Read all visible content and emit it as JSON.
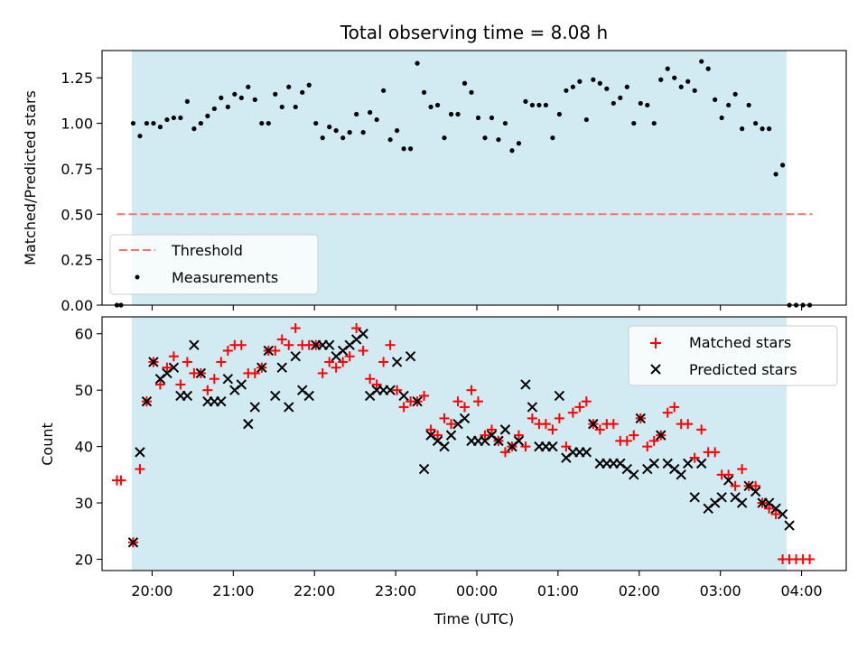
{
  "chart_data": [
    {
      "type": "scatter",
      "title": "Total observing time = 8.08 h",
      "xlabel": "",
      "ylabel": "Matched/Predicted stars",
      "xlim": [
        "19:23",
        "04:33"
      ],
      "ylim": [
        0,
        1.4
      ],
      "grid": false,
      "yticks": [
        "0.00",
        "0.25",
        "0.50",
        "0.75",
        "1.00",
        "1.25"
      ],
      "shaded_region": {
        "from": "19:45",
        "to": "03:49",
        "color": "#add8e6"
      },
      "threshold": {
        "name": "Threshold",
        "value": 0.5,
        "from": "19:34",
        "to": "04:08",
        "color": "#ff7070"
      },
      "legend_position": "lower-left",
      "legend": [
        "Threshold",
        "Measurements"
      ],
      "series": [
        {
          "name": "Measurements",
          "color": "#000000",
          "x": [
            "19:34",
            "19:37",
            "19:46",
            "19:51",
            "19:56",
            "20:01",
            "20:06",
            "20:11",
            "20:16",
            "20:21",
            "20:26",
            "20:31",
            "20:36",
            "20:41",
            "20:46",
            "20:51",
            "20:56",
            "21:01",
            "21:06",
            "21:11",
            "21:16",
            "21:21",
            "21:26",
            "21:31",
            "21:36",
            "21:41",
            "21:46",
            "21:51",
            "21:56",
            "22:01",
            "22:06",
            "22:11",
            "22:16",
            "22:21",
            "22:26",
            "22:31",
            "22:36",
            "22:41",
            "22:46",
            "22:51",
            "22:56",
            "23:01",
            "23:06",
            "23:11",
            "23:16",
            "23:21",
            "23:26",
            "23:31",
            "23:36",
            "23:41",
            "23:46",
            "23:51",
            "23:56",
            "00:01",
            "00:06",
            "00:11",
            "00:16",
            "00:21",
            "00:26",
            "00:31",
            "00:36",
            "00:41",
            "00:46",
            "00:51",
            "00:56",
            "01:01",
            "01:06",
            "01:11",
            "01:16",
            "01:21",
            "01:26",
            "01:31",
            "01:36",
            "01:41",
            "01:46",
            "01:51",
            "01:56",
            "02:01",
            "02:06",
            "02:11",
            "02:16",
            "02:21",
            "02:26",
            "02:31",
            "02:36",
            "02:41",
            "02:46",
            "02:51",
            "02:56",
            "03:01",
            "03:06",
            "03:11",
            "03:16",
            "03:21",
            "03:26",
            "03:31",
            "03:36",
            "03:41",
            "03:46",
            "03:51",
            "03:56",
            "04:01",
            "04:06"
          ],
          "y": [
            0.0,
            0.0,
            1.0,
            0.93,
            1.0,
            1.0,
            0.98,
            1.02,
            1.03,
            1.03,
            1.12,
            0.97,
            1.0,
            1.04,
            1.08,
            1.14,
            1.09,
            1.16,
            1.14,
            1.2,
            1.13,
            1.0,
            1.0,
            1.16,
            1.09,
            1.2,
            1.09,
            1.17,
            1.21,
            1.0,
            0.92,
            0.98,
            0.96,
            0.92,
            0.95,
            1.05,
            0.95,
            1.06,
            1.02,
            1.18,
            0.91,
            0.96,
            0.86,
            0.86,
            1.33,
            1.17,
            1.09,
            1.1,
            0.92,
            1.05,
            1.05,
            1.22,
            1.17,
            1.03,
            0.92,
            1.03,
            0.91,
            1.0,
            0.85,
            0.89,
            1.12,
            1.1,
            1.1,
            1.1,
            0.92,
            1.05,
            1.18,
            1.2,
            1.23,
            1.02,
            1.24,
            1.22,
            1.19,
            1.11,
            1.14,
            1.2,
            1.0,
            1.11,
            1.1,
            1.0,
            1.24,
            1.3,
            1.25,
            1.2,
            1.23,
            1.18,
            1.34,
            1.3,
            1.13,
            1.03,
            1.1,
            1.16,
            0.97,
            1.1,
            1.0,
            0.97,
            0.97,
            0.72,
            0.77,
            0.0,
            0.0,
            0.0,
            0.0
          ]
        }
      ]
    },
    {
      "type": "scatter",
      "title": "",
      "xlabel": "Time (UTC)",
      "ylabel": "Count",
      "xlim": [
        "19:23",
        "04:33"
      ],
      "ylim": [
        18,
        63
      ],
      "grid": false,
      "yticks": [
        "20",
        "30",
        "40",
        "50",
        "60"
      ],
      "xticks": [
        "20:00",
        "21:00",
        "22:00",
        "23:00",
        "00:00",
        "01:00",
        "02:00",
        "03:00",
        "04:00"
      ],
      "shaded_region": {
        "from": "19:45",
        "to": "03:49",
        "color": "#add8e6"
      },
      "legend_position": "upper-right",
      "legend": [
        "Matched stars",
        "Predicted stars"
      ],
      "series": [
        {
          "name": "Matched stars",
          "marker": "+",
          "color": "#ff0000",
          "x": [
            "19:34",
            "19:37",
            "19:46",
            "19:51",
            "19:56",
            "20:01",
            "20:06",
            "20:11",
            "20:16",
            "20:21",
            "20:26",
            "20:31",
            "20:36",
            "20:41",
            "20:46",
            "20:51",
            "20:56",
            "21:01",
            "21:06",
            "21:11",
            "21:16",
            "21:21",
            "21:26",
            "21:31",
            "21:36",
            "21:41",
            "21:46",
            "21:51",
            "21:56",
            "22:01",
            "22:06",
            "22:11",
            "22:16",
            "22:21",
            "22:26",
            "22:31",
            "22:36",
            "22:41",
            "22:46",
            "22:51",
            "22:56",
            "23:01",
            "23:06",
            "23:11",
            "23:16",
            "23:21",
            "23:26",
            "23:31",
            "23:36",
            "23:41",
            "23:46",
            "23:51",
            "23:56",
            "00:01",
            "00:06",
            "00:11",
            "00:16",
            "00:21",
            "00:26",
            "00:31",
            "00:36",
            "00:41",
            "00:46",
            "00:51",
            "00:56",
            "01:01",
            "01:06",
            "01:11",
            "01:16",
            "01:21",
            "01:26",
            "01:31",
            "01:36",
            "01:41",
            "01:46",
            "01:51",
            "01:56",
            "02:01",
            "02:06",
            "02:11",
            "02:16",
            "02:21",
            "02:26",
            "02:31",
            "02:36",
            "02:41",
            "02:46",
            "02:51",
            "02:56",
            "03:01",
            "03:06",
            "03:11",
            "03:16",
            "03:21",
            "03:26",
            "03:31",
            "03:36",
            "03:41",
            "03:46",
            "03:51",
            "03:56",
            "04:01",
            "04:06"
          ],
          "y": [
            34,
            34,
            23,
            36,
            48,
            55,
            51,
            54,
            56,
            51,
            55,
            53,
            53,
            50,
            52,
            55,
            57,
            58,
            58,
            53,
            53,
            54,
            57,
            57,
            59,
            58,
            61,
            58,
            58,
            58,
            53,
            55,
            54,
            55,
            56,
            61,
            57,
            52,
            51,
            55,
            58,
            50,
            47,
            48,
            48,
            49,
            43,
            42,
            45,
            44,
            48,
            47,
            50,
            48,
            42,
            43,
            41,
            39,
            40,
            42,
            40,
            45,
            44,
            44,
            43,
            45,
            40,
            46,
            47,
            48,
            44,
            43,
            44,
            44,
            41,
            41,
            42,
            45,
            40,
            41,
            42,
            46,
            47,
            44,
            44,
            38,
            43,
            39,
            39,
            35,
            35,
            33,
            36,
            33,
            33,
            30,
            29,
            28,
            20,
            20,
            20,
            20,
            20
          ]
        },
        {
          "name": "Predicted stars",
          "marker": "x",
          "color": "#000000",
          "x": [
            "19:46",
            "19:51",
            "19:56",
            "20:01",
            "20:06",
            "20:11",
            "20:16",
            "20:21",
            "20:26",
            "20:31",
            "20:36",
            "20:41",
            "20:46",
            "20:51",
            "20:56",
            "21:01",
            "21:06",
            "21:11",
            "21:16",
            "21:21",
            "21:26",
            "21:31",
            "21:36",
            "21:41",
            "21:46",
            "21:51",
            "21:56",
            "22:01",
            "22:06",
            "22:11",
            "22:16",
            "22:21",
            "22:26",
            "22:31",
            "22:36",
            "22:41",
            "22:46",
            "22:51",
            "22:56",
            "23:01",
            "23:06",
            "23:11",
            "23:16",
            "23:21",
            "23:26",
            "23:31",
            "23:36",
            "23:41",
            "23:46",
            "23:51",
            "23:56",
            "00:01",
            "00:06",
            "00:11",
            "00:16",
            "00:21",
            "00:26",
            "00:31",
            "00:36",
            "00:41",
            "00:46",
            "00:51",
            "00:56",
            "01:01",
            "01:06",
            "01:11",
            "01:16",
            "01:21",
            "01:26",
            "01:31",
            "01:36",
            "01:41",
            "01:46",
            "01:51",
            "01:56",
            "02:01",
            "02:06",
            "02:11",
            "02:16",
            "02:21",
            "02:26",
            "02:31",
            "02:36",
            "02:41",
            "02:46",
            "02:51",
            "02:56",
            "03:01",
            "03:06",
            "03:11",
            "03:16",
            "03:21",
            "03:26",
            "03:31",
            "03:36",
            "03:41",
            "03:46",
            "03:51"
          ],
          "y": [
            23,
            39,
            48,
            55,
            52,
            53,
            54,
            49,
            49,
            58,
            53,
            48,
            48,
            48,
            52,
            50,
            51,
            44,
            47,
            54,
            57,
            49,
            54,
            47,
            56,
            50,
            49,
            58,
            58,
            58,
            56,
            57,
            58,
            59,
            60,
            49,
            50,
            50,
            50,
            55,
            49,
            56,
            48,
            36,
            42,
            41,
            40,
            42,
            44,
            45,
            41,
            41,
            41,
            42,
            41,
            43,
            40,
            41,
            51,
            47,
            40,
            40,
            40,
            49,
            38,
            39,
            39,
            39,
            44,
            37,
            37,
            37,
            37,
            36,
            35,
            45,
            36,
            37,
            42,
            37,
            36,
            35,
            37,
            31,
            37,
            29,
            30,
            31,
            34,
            31,
            30,
            33,
            32,
            30,
            30,
            29,
            28,
            26
          ]
        }
      ]
    }
  ]
}
